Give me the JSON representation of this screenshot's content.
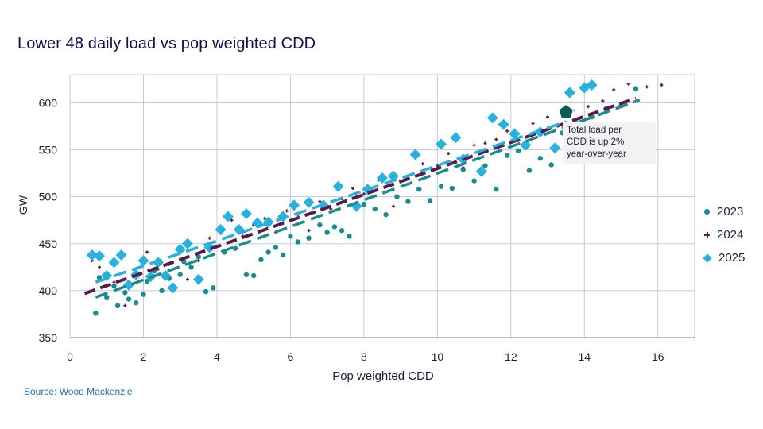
{
  "chart_data": {
    "type": "scatter",
    "title": "Lower 48 daily load vs pop weighted CDD",
    "xlabel": "Pop weighted CDD",
    "ylabel": "GW",
    "xlim": [
      0,
      17
    ],
    "ylim": [
      350,
      630
    ],
    "xticks": [
      0,
      2,
      4,
      6,
      8,
      10,
      12,
      14,
      16
    ],
    "yticks": [
      350,
      400,
      450,
      500,
      550,
      600
    ],
    "grid": "vertical and horizontal",
    "legend_position": "right",
    "series": [
      {
        "name": "2023",
        "color": "#1a8c8c",
        "marker": "circle",
        "trendline": {
          "style": "dashed",
          "x": [
            0.7,
            15.5
          ],
          "y": [
            393,
            603
          ]
        },
        "points": [
          [
            0.7,
            376
          ],
          [
            0.8,
            414
          ],
          [
            1.0,
            393
          ],
          [
            1.2,
            405
          ],
          [
            1.3,
            384
          ],
          [
            1.5,
            398
          ],
          [
            1.6,
            391
          ],
          [
            1.8,
            387
          ],
          [
            2.0,
            396
          ],
          [
            2.1,
            410
          ],
          [
            2.3,
            421
          ],
          [
            2.5,
            400
          ],
          [
            2.7,
            413
          ],
          [
            2.8,
            405
          ],
          [
            3.0,
            417
          ],
          [
            3.1,
            431
          ],
          [
            3.3,
            425
          ],
          [
            3.5,
            436
          ],
          [
            3.7,
            399
          ],
          [
            3.9,
            403
          ],
          [
            4.2,
            441
          ],
          [
            4.5,
            445
          ],
          [
            4.8,
            417
          ],
          [
            5.0,
            416
          ],
          [
            5.2,
            433
          ],
          [
            5.4,
            441
          ],
          [
            5.6,
            446
          ],
          [
            5.8,
            438
          ],
          [
            6.0,
            458
          ],
          [
            6.2,
            452
          ],
          [
            6.5,
            456
          ],
          [
            6.8,
            470
          ],
          [
            7.0,
            462
          ],
          [
            7.2,
            468
          ],
          [
            7.4,
            464
          ],
          [
            7.6,
            458
          ],
          [
            8.0,
            492
          ],
          [
            8.3,
            487
          ],
          [
            8.6,
            481
          ],
          [
            8.9,
            500
          ],
          [
            9.2,
            495
          ],
          [
            9.5,
            508
          ],
          [
            9.8,
            496
          ],
          [
            10.1,
            511
          ],
          [
            10.4,
            509
          ],
          [
            10.7,
            529
          ],
          [
            11.0,
            517
          ],
          [
            11.3,
            533
          ],
          [
            11.6,
            508
          ],
          [
            11.9,
            544
          ],
          [
            12.2,
            549
          ],
          [
            12.5,
            528
          ],
          [
            12.8,
            541
          ],
          [
            13.1,
            534
          ],
          [
            13.4,
            568
          ],
          [
            13.8,
            578
          ],
          [
            14.2,
            585
          ],
          [
            14.6,
            594
          ],
          [
            15.0,
            597
          ],
          [
            15.4,
            615
          ]
        ]
      },
      {
        "name": "2024",
        "color": "#5c1a47",
        "marker": "plus",
        "trendline": {
          "style": "dashed",
          "x": [
            0.4,
            15.4
          ],
          "y": [
            397,
            605
          ]
        },
        "points": [
          [
            0.6,
            432
          ],
          [
            0.8,
            425
          ],
          [
            1.0,
            418
          ],
          [
            1.2,
            409
          ],
          [
            1.5,
            384
          ],
          [
            1.8,
            419
          ],
          [
            2.1,
            441
          ],
          [
            2.4,
            423
          ],
          [
            2.7,
            428
          ],
          [
            3.0,
            440
          ],
          [
            3.2,
            412
          ],
          [
            3.5,
            432
          ],
          [
            3.8,
            456
          ],
          [
            4.1,
            461
          ],
          [
            4.4,
            475
          ],
          [
            4.7,
            458
          ],
          [
            5.0,
            470
          ],
          [
            5.3,
            477
          ],
          [
            5.6,
            462
          ],
          [
            5.9,
            485
          ],
          [
            6.2,
            481
          ],
          [
            6.5,
            464
          ],
          [
            6.8,
            495
          ],
          [
            7.1,
            487
          ],
          [
            7.4,
            498
          ],
          [
            7.7,
            509
          ],
          [
            8.0,
            503
          ],
          [
            8.4,
            518
          ],
          [
            8.8,
            490
          ],
          [
            9.2,
            520
          ],
          [
            9.6,
            535
          ],
          [
            10.0,
            533
          ],
          [
            10.3,
            546
          ],
          [
            10.7,
            531
          ],
          [
            11.0,
            555
          ],
          [
            11.3,
            557
          ],
          [
            11.6,
            561
          ],
          [
            11.9,
            570
          ],
          [
            12.2,
            560
          ],
          [
            12.6,
            578
          ],
          [
            13.0,
            585
          ],
          [
            13.3,
            576
          ],
          [
            13.7,
            592
          ],
          [
            14.1,
            596
          ],
          [
            14.5,
            602
          ],
          [
            14.8,
            614
          ],
          [
            15.2,
            620
          ],
          [
            15.7,
            617
          ],
          [
            16.1,
            619
          ]
        ]
      },
      {
        "name": "2025",
        "color": "#29b0df",
        "marker": "diamond",
        "trendline": {
          "style": "dashed",
          "x": [
            0.7,
            13.5
          ],
          "y": [
            409,
            580
          ]
        },
        "points": [
          [
            0.6,
            438
          ],
          [
            0.8,
            437
          ],
          [
            1.0,
            416
          ],
          [
            1.2,
            430
          ],
          [
            1.4,
            438
          ],
          [
            1.6,
            406
          ],
          [
            1.8,
            417
          ],
          [
            2.0,
            432
          ],
          [
            2.2,
            415
          ],
          [
            2.4,
            430
          ],
          [
            2.6,
            416
          ],
          [
            2.8,
            403
          ],
          [
            3.0,
            444
          ],
          [
            3.2,
            450
          ],
          [
            3.5,
            412
          ],
          [
            3.8,
            446
          ],
          [
            4.1,
            465
          ],
          [
            4.3,
            479
          ],
          [
            4.6,
            465
          ],
          [
            4.8,
            482
          ],
          [
            5.1,
            472
          ],
          [
            5.4,
            473
          ],
          [
            5.8,
            479
          ],
          [
            6.1,
            491
          ],
          [
            6.5,
            494
          ],
          [
            6.9,
            491
          ],
          [
            7.3,
            511
          ],
          [
            7.8,
            490
          ],
          [
            8.1,
            508
          ],
          [
            8.5,
            520
          ],
          [
            8.8,
            522
          ],
          [
            9.4,
            545
          ],
          [
            10.1,
            556
          ],
          [
            10.5,
            563
          ],
          [
            10.7,
            540
          ],
          [
            11.2,
            527
          ],
          [
            11.5,
            584
          ],
          [
            11.8,
            577
          ],
          [
            12.1,
            567
          ],
          [
            12.4,
            555
          ],
          [
            12.8,
            569
          ],
          [
            13.2,
            552
          ],
          [
            13.6,
            611
          ],
          [
            14.0,
            616
          ],
          [
            14.2,
            619
          ]
        ]
      }
    ],
    "annotation": {
      "lines": [
        "Total load per",
        "CDD is up 2%",
        "year-over-year"
      ],
      "marker_x": 13.5,
      "marker_y": 590
    },
    "source": "Source: Wood Mackenzie"
  },
  "colors": {
    "axis_text": "#1e1e3c",
    "grid": "#c7c7e0",
    "title": "#12124a",
    "source": "#2a6fb0"
  }
}
